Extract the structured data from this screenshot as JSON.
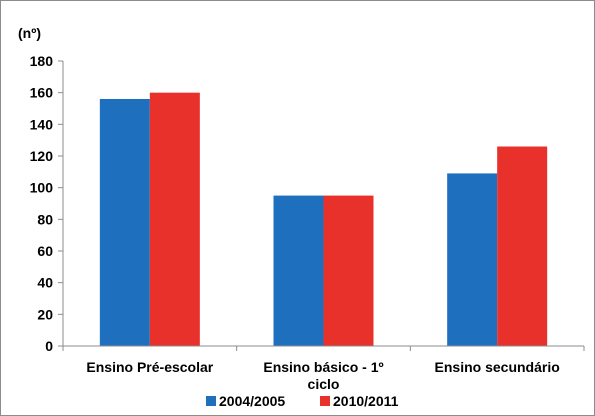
{
  "chart_data": {
    "type": "bar",
    "unit_label": "(nº)",
    "categories": [
      [
        "Ensino Pré-escolar"
      ],
      [
        "Ensino básico - 1º",
        "ciclo"
      ],
      [
        "Ensino secundário"
      ]
    ],
    "series": [
      {
        "name": "2004/2005",
        "color": "#1f6fbf",
        "values": [
          156,
          95,
          109
        ]
      },
      {
        "name": "2010/2011",
        "color": "#e8312a",
        "values": [
          160,
          95,
          126
        ]
      }
    ],
    "ylim": [
      0,
      180
    ],
    "yticks": [
      0,
      20,
      40,
      60,
      80,
      100,
      120,
      140,
      160,
      180
    ],
    "grid": false,
    "legend_position": "bottom"
  }
}
